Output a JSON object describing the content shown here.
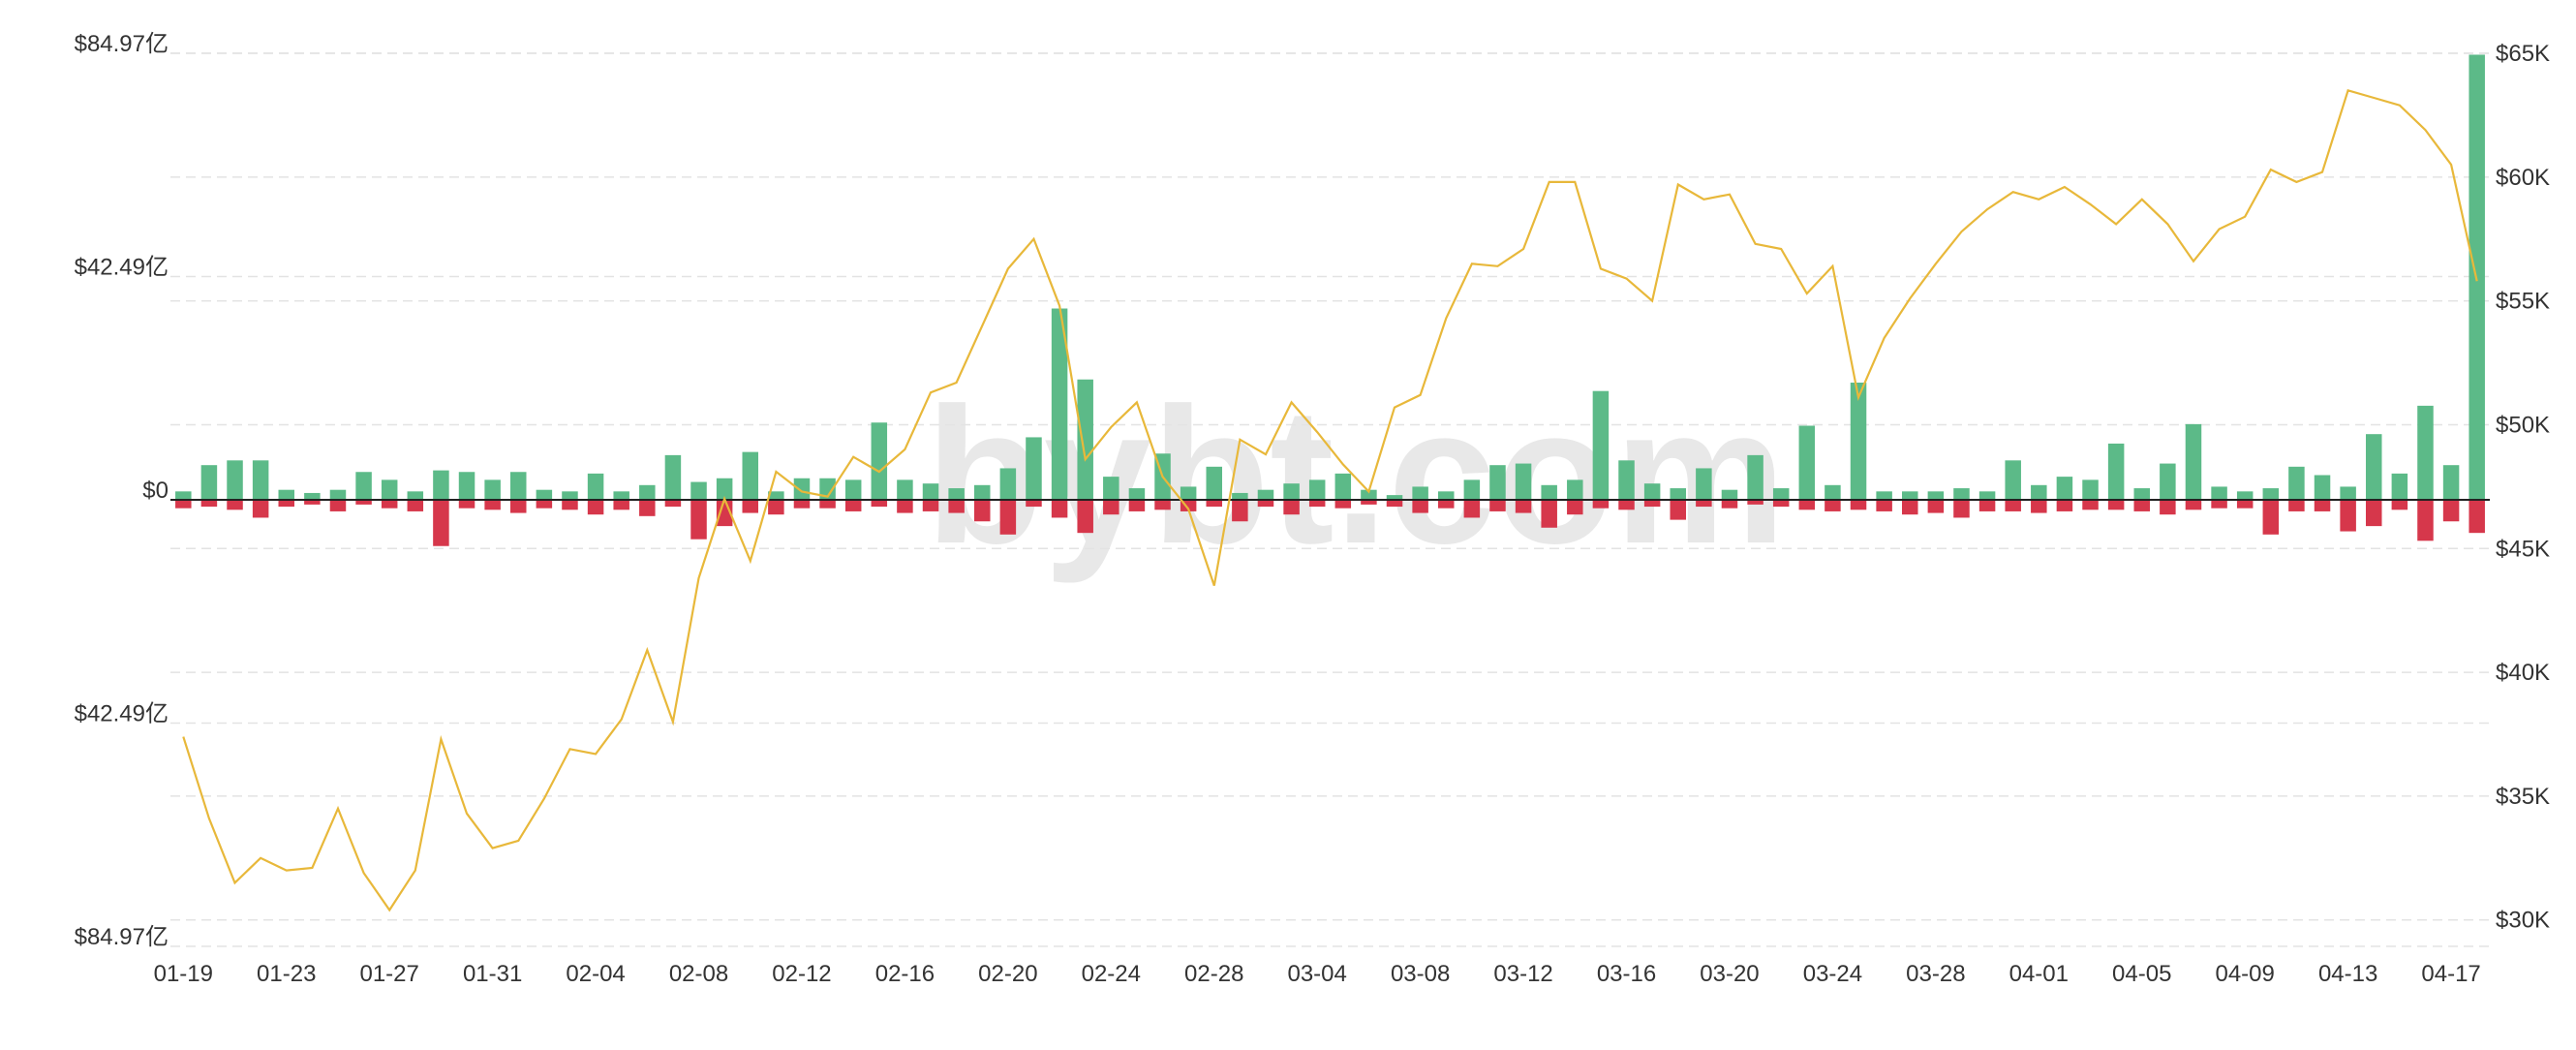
{
  "chart_data": {
    "type": "bar-line",
    "watermark": "bybt.com",
    "categories": [
      "01-19",
      null,
      null,
      null,
      "01-23",
      null,
      null,
      null,
      "01-27",
      null,
      null,
      null,
      "01-31",
      null,
      null,
      null,
      "02-04",
      null,
      null,
      null,
      "02-08",
      null,
      null,
      null,
      "02-12",
      null,
      null,
      null,
      "02-16",
      null,
      null,
      null,
      "02-20",
      null,
      null,
      null,
      "02-24",
      null,
      null,
      null,
      "02-28",
      null,
      null,
      null,
      "03-04",
      null,
      null,
      null,
      "03-08",
      null,
      null,
      null,
      "03-12",
      null,
      null,
      null,
      "03-16",
      null,
      null,
      null,
      "03-20",
      null,
      null,
      null,
      "03-24",
      null,
      null,
      null,
      "03-28",
      null,
      null,
      null,
      "04-01",
      null,
      null,
      null,
      "04-05",
      null,
      null,
      null,
      "04-09",
      null,
      null,
      null,
      "04-13",
      null,
      null,
      null,
      "04-17",
      null
    ],
    "ylim": [
      -84.97,
      84.97
    ],
    "yticks": [
      {
        "value": 84.97,
        "label": "$84.97亿"
      },
      {
        "value": 42.49,
        "label": "$42.49亿"
      },
      {
        "value": 0,
        "label": "$0"
      },
      {
        "value": -42.49,
        "label": "$42.49亿"
      },
      {
        "value": -84.97,
        "label": "$84.97亿"
      }
    ],
    "y2lim": [
      28933,
      65000
    ],
    "y2ticks": [
      {
        "value": 65000,
        "label": "$65K"
      },
      {
        "value": 60000,
        "label": "$60K"
      },
      {
        "value": 55000,
        "label": "$55K"
      },
      {
        "value": 50000,
        "label": "$50K"
      },
      {
        "value": 45000,
        "label": "$45K"
      },
      {
        "value": 40000,
        "label": "$40K"
      },
      {
        "value": 35000,
        "label": "$35K"
      },
      {
        "value": 30000,
        "label": "$30K"
      }
    ],
    "grid": true,
    "series": [
      {
        "type": "bar",
        "color": "#5cba88",
        "values": [
          1.6,
          6.6,
          7.5,
          7.5,
          1.9,
          1.3,
          1.9,
          5.3,
          3.8,
          1.6,
          5.6,
          5.3,
          3.8,
          5.3,
          1.9,
          1.6,
          5.0,
          1.6,
          2.8,
          8.5,
          3.4,
          4.1,
          9.1,
          1.6,
          4.1,
          4.1,
          3.8,
          14.7,
          3.8,
          3.1,
          2.2,
          2.8,
          6.0,
          11.9,
          36.4,
          22.9,
          4.4,
          2.2,
          8.8,
          2.5,
          6.3,
          1.3,
          1.9,
          3.1,
          3.8,
          5.0,
          1.9,
          0.9,
          2.5,
          1.6,
          3.8,
          6.6,
          6.9,
          2.8,
          3.8,
          20.7,
          7.5,
          3.1,
          2.2,
          6.0,
          1.9,
          8.5,
          2.2,
          14.1,
          2.8,
          22.3,
          1.6,
          1.6,
          1.6,
          2.2,
          1.6,
          7.5,
          2.8,
          4.4,
          3.8,
          10.7,
          2.2,
          6.9,
          14.4,
          2.5,
          1.6,
          2.2,
          6.3,
          4.7,
          2.5,
          12.5,
          5.0,
          17.9,
          6.6,
          84.7
        ]
      },
      {
        "type": "bar",
        "color": "#d6374b",
        "values": [
          -1.6,
          -1.3,
          -1.9,
          -3.4,
          -1.3,
          -0.9,
          -2.2,
          -0.9,
          -1.6,
          -2.2,
          -8.8,
          -1.6,
          -1.9,
          -2.5,
          -1.6,
          -1.9,
          -2.8,
          -1.9,
          -3.1,
          -1.3,
          -7.5,
          -5.0,
          -2.5,
          -2.8,
          -1.6,
          -1.6,
          -2.2,
          -1.3,
          -2.5,
          -2.2,
          -2.5,
          -4.1,
          -6.6,
          -1.3,
          -3.4,
          -6.3,
          -2.8,
          -2.2,
          -1.9,
          -2.2,
          -1.3,
          -4.1,
          -1.3,
          -2.8,
          -1.3,
          -1.6,
          -0.9,
          -1.3,
          -2.5,
          -1.6,
          -3.4,
          -2.2,
          -2.5,
          -5.3,
          -2.8,
          -1.6,
          -1.9,
          -1.3,
          -3.8,
          -1.3,
          -1.6,
          -0.9,
          -1.3,
          -1.9,
          -2.2,
          -1.9,
          -2.2,
          -2.8,
          -2.5,
          -3.4,
          -2.2,
          -2.2,
          -2.5,
          -2.2,
          -1.9,
          -1.9,
          -2.2,
          -2.8,
          -1.9,
          -1.6,
          -1.6,
          -6.6,
          -2.2,
          -2.2,
          -6.0,
          -5.0,
          -1.9,
          -7.8,
          -4.1,
          -6.3
        ]
      },
      {
        "type": "line",
        "axis": "y2",
        "color": "#e8b83a",
        "values": [
          37400,
          34100,
          31500,
          32500,
          32000,
          32100,
          34500,
          31900,
          30400,
          32000,
          37300,
          34300,
          32900,
          33200,
          34900,
          36900,
          36700,
          38100,
          40900,
          38000,
          43800,
          47000,
          44500,
          48100,
          47300,
          47100,
          48700,
          48100,
          49000,
          51300,
          51700,
          54000,
          56300,
          57500,
          54800,
          48600,
          49900,
          50900,
          47900,
          46600,
          43500,
          49400,
          48800,
          50900,
          49700,
          48400,
          47300,
          50700,
          51200,
          54300,
          56500,
          56400,
          57100,
          59800,
          59800,
          56300,
          55900,
          55000,
          59700,
          59100,
          59300,
          57300,
          57100,
          55300,
          56400,
          51100,
          53500,
          55100,
          56500,
          57800,
          58700,
          59400,
          59100,
          59600,
          58900,
          58100,
          59100,
          58100,
          56600,
          57900,
          58400,
          60300,
          59800,
          60200,
          63500,
          63200,
          62900,
          61900,
          60500,
          55800
        ]
      }
    ]
  }
}
